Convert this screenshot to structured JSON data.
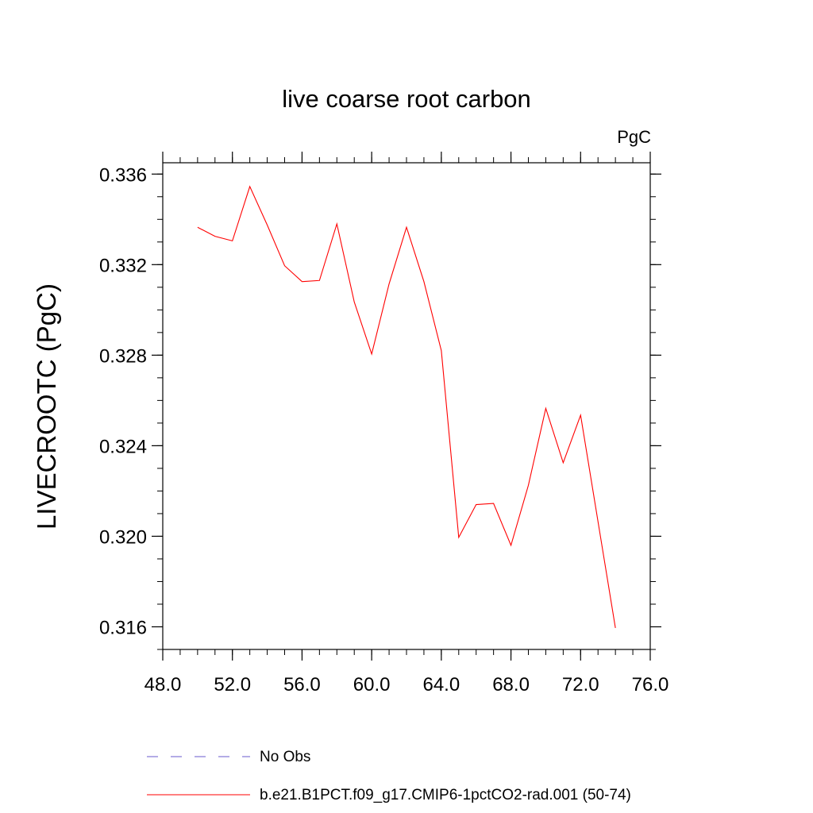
{
  "chart_data": {
    "type": "line",
    "title": "live coarse root carbon",
    "units": "PgC",
    "ylabel": "LIVECROOTC  (PgC)",
    "xlabel": "",
    "xlim": [
      48.0,
      76.0
    ],
    "ylim": [
      0.315,
      0.3365
    ],
    "x_ticks": [
      "48.0",
      "52.0",
      "56.0",
      "60.0",
      "64.0",
      "68.0",
      "72.0",
      "76.0"
    ],
    "y_ticks": [
      "0.316",
      "0.320",
      "0.324",
      "0.328",
      "0.332",
      "0.336"
    ],
    "legend_placement": "bottom-left",
    "series": [
      {
        "name": "No Obs",
        "color": "#6a5acd",
        "style": "dashed",
        "x": [],
        "values": []
      },
      {
        "name": "b.e21.B1PCT.f09_g17.CMIP6-1pctCO2-rad.001 (50-74)",
        "color": "#ff0000",
        "style": "solid",
        "x": [
          50,
          51,
          52,
          53,
          54,
          55,
          56,
          57,
          58,
          59,
          60,
          61,
          62,
          63,
          64,
          65,
          66,
          67,
          68,
          69,
          70,
          71,
          72,
          73,
          74
        ],
        "values": [
          0.33365,
          0.33325,
          0.33305,
          0.33545,
          0.33375,
          0.33195,
          0.33125,
          0.3313,
          0.3338,
          0.33035,
          0.32805,
          0.33115,
          0.33365,
          0.33125,
          0.3282,
          0.31995,
          0.3214,
          0.32145,
          0.3196,
          0.32225,
          0.32565,
          0.32325,
          0.32535,
          0.32065,
          0.31595
        ]
      }
    ]
  }
}
